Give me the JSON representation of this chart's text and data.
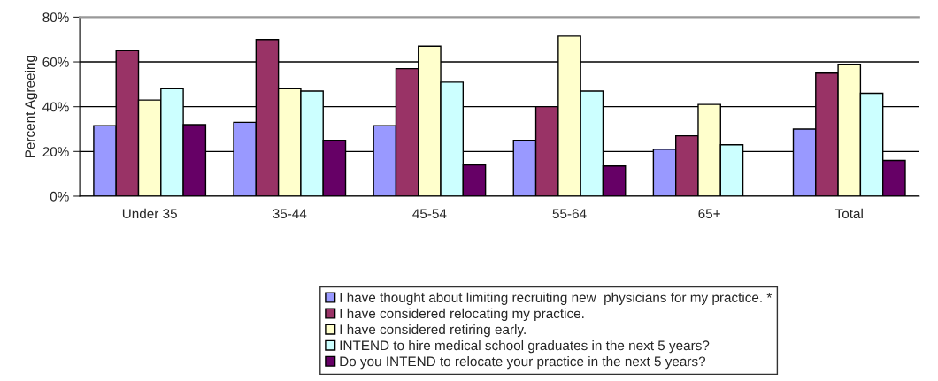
{
  "chart_data": {
    "type": "bar",
    "ylabel": "Percent Agreeing",
    "categories": [
      "Under 35",
      "35-44",
      "45-54",
      "55-64",
      "65+",
      "Total"
    ],
    "series": [
      {
        "name": "I have thought about limiting recruiting new  physicians for my practice. *",
        "color": "#9999ff",
        "values": [
          31.5,
          33,
          31.5,
          25,
          21,
          30
        ]
      },
      {
        "name": "I have considered relocating my practice.",
        "color": "#993366",
        "values": [
          65,
          70,
          57,
          40,
          27,
          55
        ]
      },
      {
        "name": "I have considered retiring early.",
        "color": "#ffffcc",
        "values": [
          43,
          48,
          67,
          71.5,
          41,
          59
        ]
      },
      {
        "name": "INTEND to hire medical school graduates in the next 5 years?",
        "color": "#ccffff",
        "values": [
          48,
          47,
          51,
          47,
          23,
          46
        ]
      },
      {
        "name": "Do you INTEND to relocate your practice in the next 5 years?",
        "color": "#660066",
        "values": [
          32,
          25,
          14,
          13.5,
          null,
          16
        ]
      }
    ],
    "ylim": [
      0,
      80
    ],
    "yticks": [
      {
        "value": 0,
        "label": "0%"
      },
      {
        "value": 20,
        "label": "20%"
      },
      {
        "value": 40,
        "label": "40%"
      },
      {
        "value": 60,
        "label": "60%"
      },
      {
        "value": 80,
        "label": "80%"
      }
    ],
    "grid": "y",
    "legend": "bottom"
  }
}
